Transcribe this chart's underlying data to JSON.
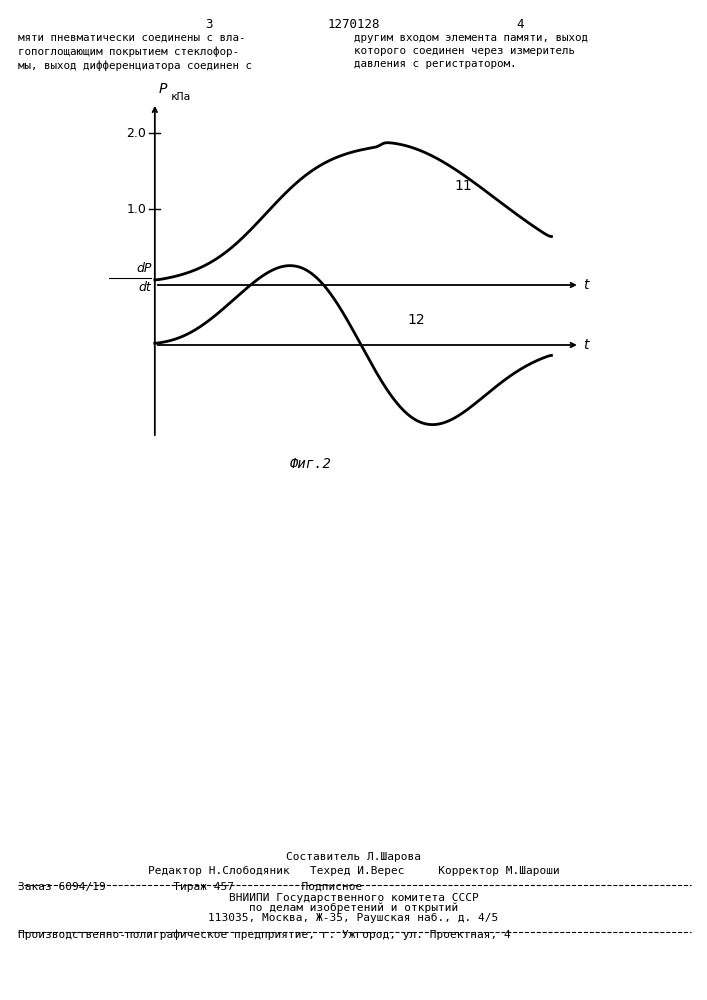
{
  "bg_color": "#ffffff",
  "page_number_left": "3",
  "page_number_center": "1270128",
  "page_number_right": "4",
  "text_left": "мяти пневматически соединены с вла-\nгопоглощающим покрытием стеклофор-\nмы, выход дифференциатора соединен с",
  "text_right": "другим входом элемента памяти, выход\nкоторого соединен через измеритель\nдавления с регистратором.",
  "curve11_label": "11",
  "curve12_label": "12",
  "fig_caption": "Фиг.2",
  "ylabel_top": "P",
  "ylabel_top_unit": "кПа",
  "ytick_2": "2.0",
  "ytick_1": "1.0",
  "ylabel_bottom_line1": "dP",
  "ylabel_bottom_line2": "dt",
  "xlabel_top": "t",
  "xlabel_bottom": "t",
  "footer_composer": "Составитель Л.Шарова",
  "footer_editor": "Редактор Н.Слободяник   Техред И.Верес     Корректор М.Шароши",
  "footer_order": "Заказ 6094/19          Тираж 457          Подписное",
  "footer_vniiipi": "ВНИИПИ Государственного комитета СССР",
  "footer_dept": "по делам изобретений и открытий",
  "footer_address": "113035, Москва, Ж-35, Раушская наб., д. 4/5",
  "footer_production": "Производственно-полиграфическое предприятие, г. Ужгород, ул. Проектная, 4"
}
